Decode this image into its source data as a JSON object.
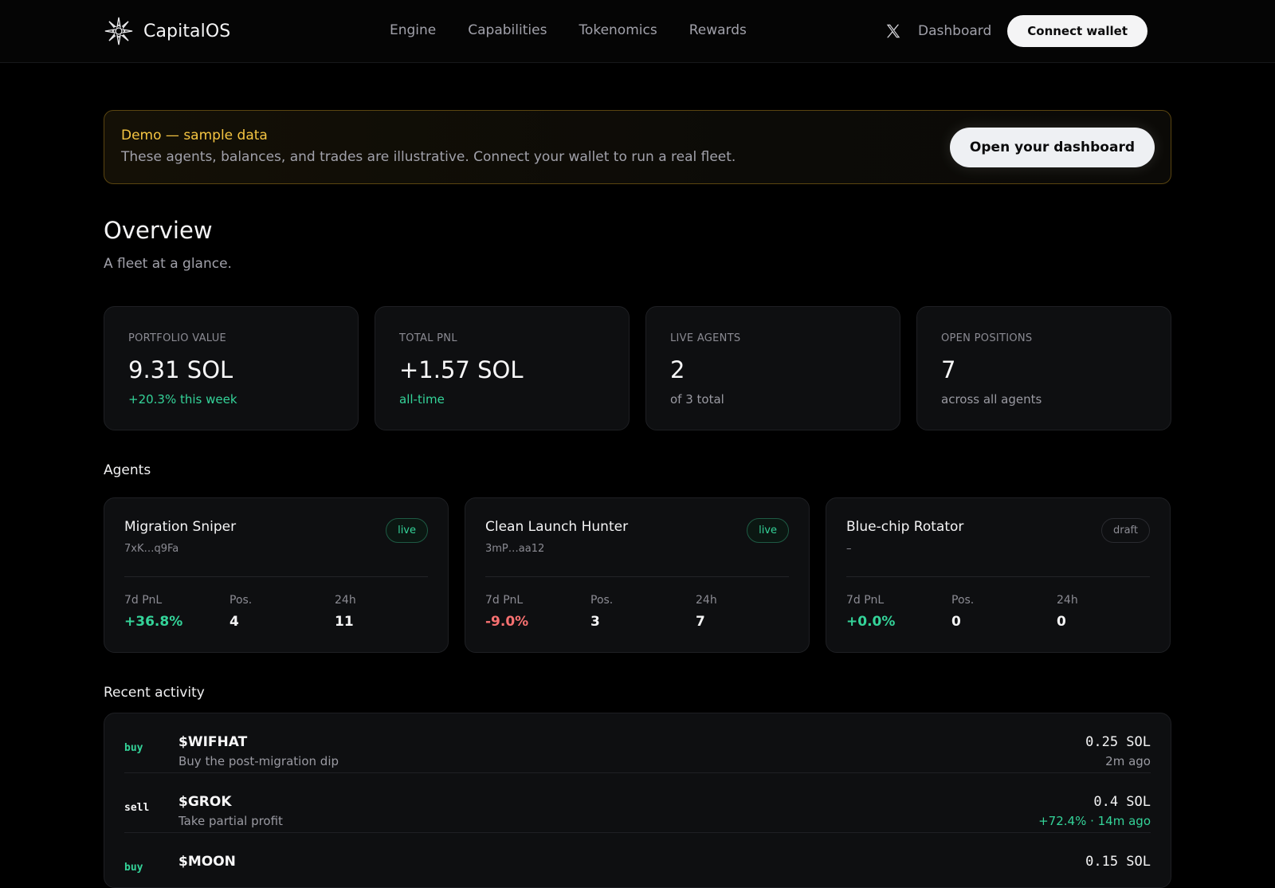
{
  "header": {
    "brand": "CapitalOS",
    "nav": [
      "Engine",
      "Capabilities",
      "Tokenomics",
      "Rewards"
    ],
    "dashboard_link": "Dashboard",
    "connect_label": "Connect wallet"
  },
  "banner": {
    "title": "Demo — sample data",
    "description": "These agents, balances, and trades are illustrative. Connect your wallet to run a real fleet.",
    "button_label": "Open your dashboard"
  },
  "overview": {
    "title": "Overview",
    "subtitle": "A fleet at a glance."
  },
  "stats": [
    {
      "label": "PORTFOLIO VALUE",
      "value": "9.31 SOL",
      "sub": "+20.3% this week"
    },
    {
      "label": "TOTAL PNL",
      "value": "+1.57 SOL",
      "sub": "all-time"
    },
    {
      "label": "LIVE AGENTS",
      "value": "2",
      "sub": "of 3 total"
    },
    {
      "label": "OPEN POSITIONS",
      "value": "7",
      "sub": "across all agents"
    }
  ],
  "agents_title": "Agents",
  "metric_labels": {
    "pnl": "7d PnL",
    "pos": "Pos.",
    "day": "24h"
  },
  "agents": [
    {
      "name": "Migration Sniper",
      "address": "7xK…q9Fa",
      "status": "live",
      "pnl": "+36.8%",
      "positions": "4",
      "day": "11"
    },
    {
      "name": "Clean Launch Hunter",
      "address": "3mP…aa12",
      "status": "live",
      "pnl": "-9.0%",
      "positions": "3",
      "day": "7"
    },
    {
      "name": "Blue-chip Rotator",
      "address": "–",
      "status": "draft",
      "pnl": "+0.0%",
      "positions": "0",
      "day": "0"
    }
  ],
  "activity_title": "Recent activity",
  "activity": [
    {
      "side": "buy",
      "ticker": "$WIFHAT",
      "note": "Buy the post-migration dip",
      "amount": "0.25 SOL",
      "pct": "",
      "time": "2m ago"
    },
    {
      "side": "sell",
      "ticker": "$GROK",
      "note": "Take partial profit",
      "amount": "0.4 SOL",
      "pct": "+72.4% · ",
      "time": "14m ago"
    },
    {
      "side": "buy",
      "ticker": "$MOON",
      "note": "",
      "amount": "0.15 SOL",
      "pct": "",
      "time": ""
    }
  ],
  "colors": {
    "accent_green": "#34d399",
    "accent_red": "#f87171",
    "demo_yellow": "#f5c542"
  }
}
